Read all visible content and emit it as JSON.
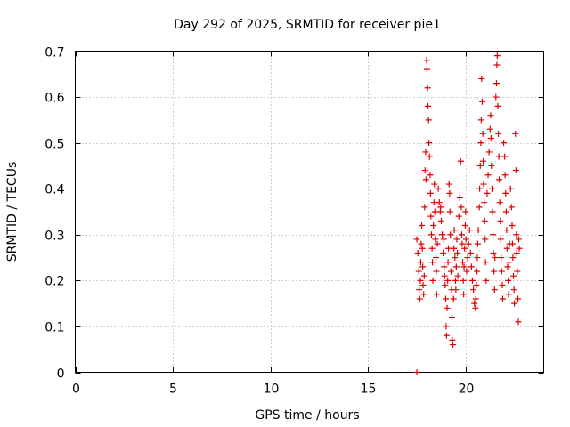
{
  "chart_data": {
    "type": "scatter",
    "title": "Day 292 of 2025, SRMTID for receiver pie1",
    "xlabel": "GPS time / hours",
    "ylabel": "SRMTID / TECUs",
    "xlim": [
      0,
      24
    ],
    "ylim": [
      0,
      0.7
    ],
    "xticks": [
      "0",
      "5",
      "10",
      "15",
      "20"
    ],
    "xtick_values": [
      0,
      5,
      10,
      15,
      20
    ],
    "yticks": [
      "0",
      "0.1",
      "0.2",
      "0.3",
      "0.4",
      "0.5",
      "0.6",
      "0.7"
    ],
    "ytick_values": [
      0,
      0.1,
      0.2,
      0.3,
      0.4,
      0.5,
      0.6,
      0.7
    ],
    "grid": true,
    "marker": "+",
    "color": "#e00000",
    "series": [
      {
        "name": "SRMTID",
        "points": [
          [
            17.5,
            0.0
          ],
          [
            17.5,
            0.29
          ],
          [
            17.55,
            0.26
          ],
          [
            17.6,
            0.22
          ],
          [
            17.62,
            0.18
          ],
          [
            17.65,
            0.16
          ],
          [
            17.68,
            0.2
          ],
          [
            17.7,
            0.24
          ],
          [
            17.72,
            0.28
          ],
          [
            17.75,
            0.32
          ],
          [
            17.78,
            0.27
          ],
          [
            17.8,
            0.23
          ],
          [
            17.82,
            0.19
          ],
          [
            17.85,
            0.17
          ],
          [
            17.88,
            0.21
          ],
          [
            17.9,
            0.36
          ],
          [
            17.92,
            0.44
          ],
          [
            17.95,
            0.48
          ],
          [
            17.97,
            0.42
          ],
          [
            18.0,
            0.68
          ],
          [
            18.02,
            0.66
          ],
          [
            18.05,
            0.62
          ],
          [
            18.07,
            0.58
          ],
          [
            18.1,
            0.55
          ],
          [
            18.12,
            0.5
          ],
          [
            18.15,
            0.47
          ],
          [
            18.18,
            0.43
          ],
          [
            18.2,
            0.39
          ],
          [
            18.22,
            0.34
          ],
          [
            18.25,
            0.3
          ],
          [
            18.28,
            0.27
          ],
          [
            18.3,
            0.24
          ],
          [
            18.32,
            0.2
          ],
          [
            18.35,
            0.32
          ],
          [
            18.38,
            0.37
          ],
          [
            18.4,
            0.41
          ],
          [
            18.42,
            0.35
          ],
          [
            18.45,
            0.29
          ],
          [
            18.48,
            0.25
          ],
          [
            18.5,
            0.22
          ],
          [
            18.52,
            0.17
          ],
          [
            18.55,
            0.28
          ],
          [
            18.6,
            0.4
          ],
          [
            18.65,
            0.37
          ],
          [
            18.7,
            0.35
          ],
          [
            18.72,
            0.36
          ],
          [
            18.75,
            0.33
          ],
          [
            18.8,
            0.3
          ],
          [
            18.85,
            0.26
          ],
          [
            18.88,
            0.29
          ],
          [
            18.9,
            0.23
          ],
          [
            18.92,
            0.21
          ],
          [
            18.95,
            0.19
          ],
          [
            18.98,
            0.16
          ],
          [
            19.0,
            0.1
          ],
          [
            19.02,
            0.08
          ],
          [
            19.05,
            0.14
          ],
          [
            19.08,
            0.2
          ],
          [
            19.1,
            0.24
          ],
          [
            19.12,
            0.27
          ],
          [
            19.15,
            0.41
          ],
          [
            19.18,
            0.39
          ],
          [
            19.2,
            0.35
          ],
          [
            19.22,
            0.3
          ],
          [
            19.25,
            0.22
          ],
          [
            19.28,
            0.18
          ],
          [
            19.3,
            0.12
          ],
          [
            19.32,
            0.07
          ],
          [
            19.35,
            0.06
          ],
          [
            19.38,
            0.16
          ],
          [
            19.4,
            0.27
          ],
          [
            19.42,
            0.31
          ],
          [
            19.45,
            0.25
          ],
          [
            19.48,
            0.2
          ],
          [
            19.5,
            0.18
          ],
          [
            19.52,
            0.23
          ],
          [
            19.55,
            0.29
          ],
          [
            19.58,
            0.26
          ],
          [
            19.6,
            0.21
          ],
          [
            19.65,
            0.34
          ],
          [
            19.7,
            0.38
          ],
          [
            19.75,
            0.46
          ],
          [
            19.78,
            0.36
          ],
          [
            19.8,
            0.3
          ],
          [
            19.82,
            0.28
          ],
          [
            19.85,
            0.24
          ],
          [
            19.88,
            0.2
          ],
          [
            19.9,
            0.17
          ],
          [
            19.92,
            0.23
          ],
          [
            19.95,
            0.27
          ],
          [
            19.98,
            0.32
          ],
          [
            20.0,
            0.35
          ],
          [
            20.02,
            0.29
          ],
          [
            20.05,
            0.22
          ],
          [
            20.1,
            0.25
          ],
          [
            20.15,
            0.28
          ],
          [
            20.2,
            0.31
          ],
          [
            20.25,
            0.26
          ],
          [
            20.3,
            0.23
          ],
          [
            20.35,
            0.2
          ],
          [
            20.4,
            0.18
          ],
          [
            20.45,
            0.15
          ],
          [
            20.5,
            0.14
          ],
          [
            20.52,
            0.16
          ],
          [
            20.55,
            0.19
          ],
          [
            20.58,
            0.22
          ],
          [
            20.6,
            0.25
          ],
          [
            20.62,
            0.28
          ],
          [
            20.65,
            0.31
          ],
          [
            20.7,
            0.36
          ],
          [
            20.72,
            0.4
          ],
          [
            20.75,
            0.45
          ],
          [
            20.78,
            0.5
          ],
          [
            20.8,
            0.55
          ],
          [
            20.82,
            0.64
          ],
          [
            20.85,
            0.59
          ],
          [
            20.88,
            0.52
          ],
          [
            20.9,
            0.46
          ],
          [
            20.92,
            0.41
          ],
          [
            20.95,
            0.37
          ],
          [
            20.98,
            0.33
          ],
          [
            21.0,
            0.29
          ],
          [
            21.02,
            0.24
          ],
          [
            21.05,
            0.2
          ],
          [
            21.1,
            0.39
          ],
          [
            21.15,
            0.43
          ],
          [
            21.2,
            0.48
          ],
          [
            21.25,
            0.53
          ],
          [
            21.28,
            0.56
          ],
          [
            21.3,
            0.51
          ],
          [
            21.32,
            0.45
          ],
          [
            21.35,
            0.4
          ],
          [
            21.38,
            0.35
          ],
          [
            21.4,
            0.3
          ],
          [
            21.42,
            0.26
          ],
          [
            21.45,
            0.22
          ],
          [
            21.48,
            0.18
          ],
          [
            21.5,
            0.25
          ],
          [
            21.55,
            0.6
          ],
          [
            21.58,
            0.63
          ],
          [
            21.6,
            0.67
          ],
          [
            21.62,
            0.69
          ],
          [
            21.65,
            0.58
          ],
          [
            21.68,
            0.52
          ],
          [
            21.7,
            0.47
          ],
          [
            21.72,
            0.42
          ],
          [
            21.75,
            0.37
          ],
          [
            21.78,
            0.33
          ],
          [
            21.8,
            0.29
          ],
          [
            21.82,
            0.25
          ],
          [
            21.85,
            0.22
          ],
          [
            21.88,
            0.19
          ],
          [
            21.9,
            0.16
          ],
          [
            21.95,
            0.5
          ],
          [
            22.0,
            0.47
          ],
          [
            22.02,
            0.43
          ],
          [
            22.05,
            0.39
          ],
          [
            22.08,
            0.35
          ],
          [
            22.1,
            0.31
          ],
          [
            22.12,
            0.27
          ],
          [
            22.15,
            0.23
          ],
          [
            22.18,
            0.2
          ],
          [
            22.2,
            0.17
          ],
          [
            22.22,
            0.24
          ],
          [
            22.25,
            0.28
          ],
          [
            22.3,
            0.4
          ],
          [
            22.35,
            0.36
          ],
          [
            22.38,
            0.32
          ],
          [
            22.4,
            0.28
          ],
          [
            22.42,
            0.25
          ],
          [
            22.45,
            0.21
          ],
          [
            22.48,
            0.18
          ],
          [
            22.5,
            0.15
          ],
          [
            22.55,
            0.52
          ],
          [
            22.58,
            0.44
          ],
          [
            22.6,
            0.3
          ],
          [
            22.62,
            0.26
          ],
          [
            22.65,
            0.22
          ],
          [
            22.68,
            0.16
          ],
          [
            22.7,
            0.11
          ],
          [
            22.72,
            0.29
          ],
          [
            22.75,
            0.27
          ]
        ]
      }
    ]
  }
}
